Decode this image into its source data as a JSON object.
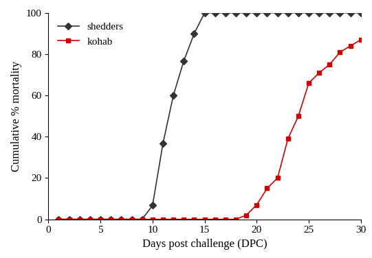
{
  "chart_data": {
    "type": "line",
    "x_label": "Days post challenge (DPC)",
    "y_label": "Cumulative % mortality",
    "x": [
      1,
      2,
      3,
      4,
      5,
      6,
      7,
      8,
      9,
      10,
      11,
      12,
      13,
      14,
      15,
      16,
      17,
      18,
      19,
      20,
      21,
      22,
      23,
      24,
      25,
      26,
      27,
      28,
      29,
      30
    ],
    "series": [
      {
        "name": "shedders",
        "color": "#333333",
        "marker": "diamond",
        "line_style": "solid",
        "values": [
          0,
          0,
          0,
          0,
          0,
          0,
          0,
          0,
          0,
          6.7,
          36.7,
          60,
          76.7,
          90,
          100,
          100,
          100,
          100,
          100,
          100,
          100,
          100,
          100,
          100,
          100,
          100,
          100,
          100,
          100,
          100
        ]
      },
      {
        "name": "kohab",
        "color": "#cc0000",
        "marker": "square",
        "line_style": "solid",
        "values": [
          0,
          0,
          0,
          0,
          0,
          0,
          0,
          0,
          0,
          0,
          0,
          0,
          0,
          0,
          0,
          0,
          0,
          0,
          2,
          7,
          15,
          20,
          39,
          50,
          66,
          71,
          75,
          81,
          84,
          87
        ]
      }
    ],
    "xlim": [
      0,
      30
    ],
    "xticks": [
      0,
      5,
      10,
      15,
      20,
      25,
      30
    ],
    "ylim": [
      0,
      100
    ],
    "yticks": [
      0,
      20,
      40,
      60,
      80,
      100
    ],
    "legend": "upper left",
    "grid": false
  }
}
